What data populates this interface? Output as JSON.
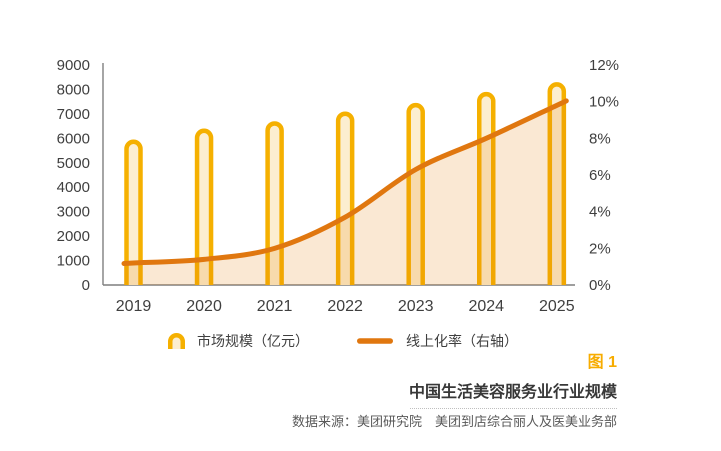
{
  "figure": {
    "label": "图 1",
    "title": "中国生活美容服务业行业规模",
    "source": "数据来源：美团研究院　美团到店综合丽人及医美业务部"
  },
  "legend": {
    "bar_label": "市场规模（亿元）",
    "line_label": "线上化率（右轴）"
  },
  "colors": {
    "bar_stroke": "#F5B000",
    "bar_fill": "#FCEED0",
    "area_fill": "rgba(230,126,10,0.18)",
    "line": "#E0770F",
    "axis_text": "#3F3F3F",
    "axis_line": "#7F7F7F",
    "figure_label": "#F7AC00",
    "title_text": "#383838",
    "source_text": "#595959"
  },
  "chart_data": {
    "type": "bar",
    "subtype": "combo bar+line, dual axis",
    "categories": [
      "2019",
      "2020",
      "2021",
      "2022",
      "2023",
      "2024",
      "2025"
    ],
    "series": [
      {
        "name": "市场规模（亿元）",
        "type": "bar",
        "axis": "left",
        "values": [
          5950,
          6400,
          6700,
          7100,
          7450,
          7900,
          8300
        ]
      },
      {
        "name": "线上化率（右轴）",
        "type": "line",
        "axis": "right",
        "values": [
          1.2,
          1.4,
          2.0,
          3.7,
          6.3,
          8.0,
          9.8
        ]
      }
    ],
    "title": "中国生活美容服务业行业规模",
    "xlabel": "",
    "ylabel_left": "亿元",
    "ylabel_right": "%",
    "left_axis": {
      "min": 0,
      "max": 9000,
      "step": 1000,
      "ticks": [
        "0",
        "1000",
        "2000",
        "3000",
        "4000",
        "5000",
        "6000",
        "7000",
        "8000",
        "9000"
      ]
    },
    "right_axis": {
      "min": 0,
      "max": 12,
      "step": 2,
      "suffix": "%",
      "ticks": [
        "0%",
        "2%",
        "4%",
        "6%",
        "8%",
        "10%",
        "12%"
      ]
    },
    "grid": false,
    "legend_position": "bottom"
  }
}
